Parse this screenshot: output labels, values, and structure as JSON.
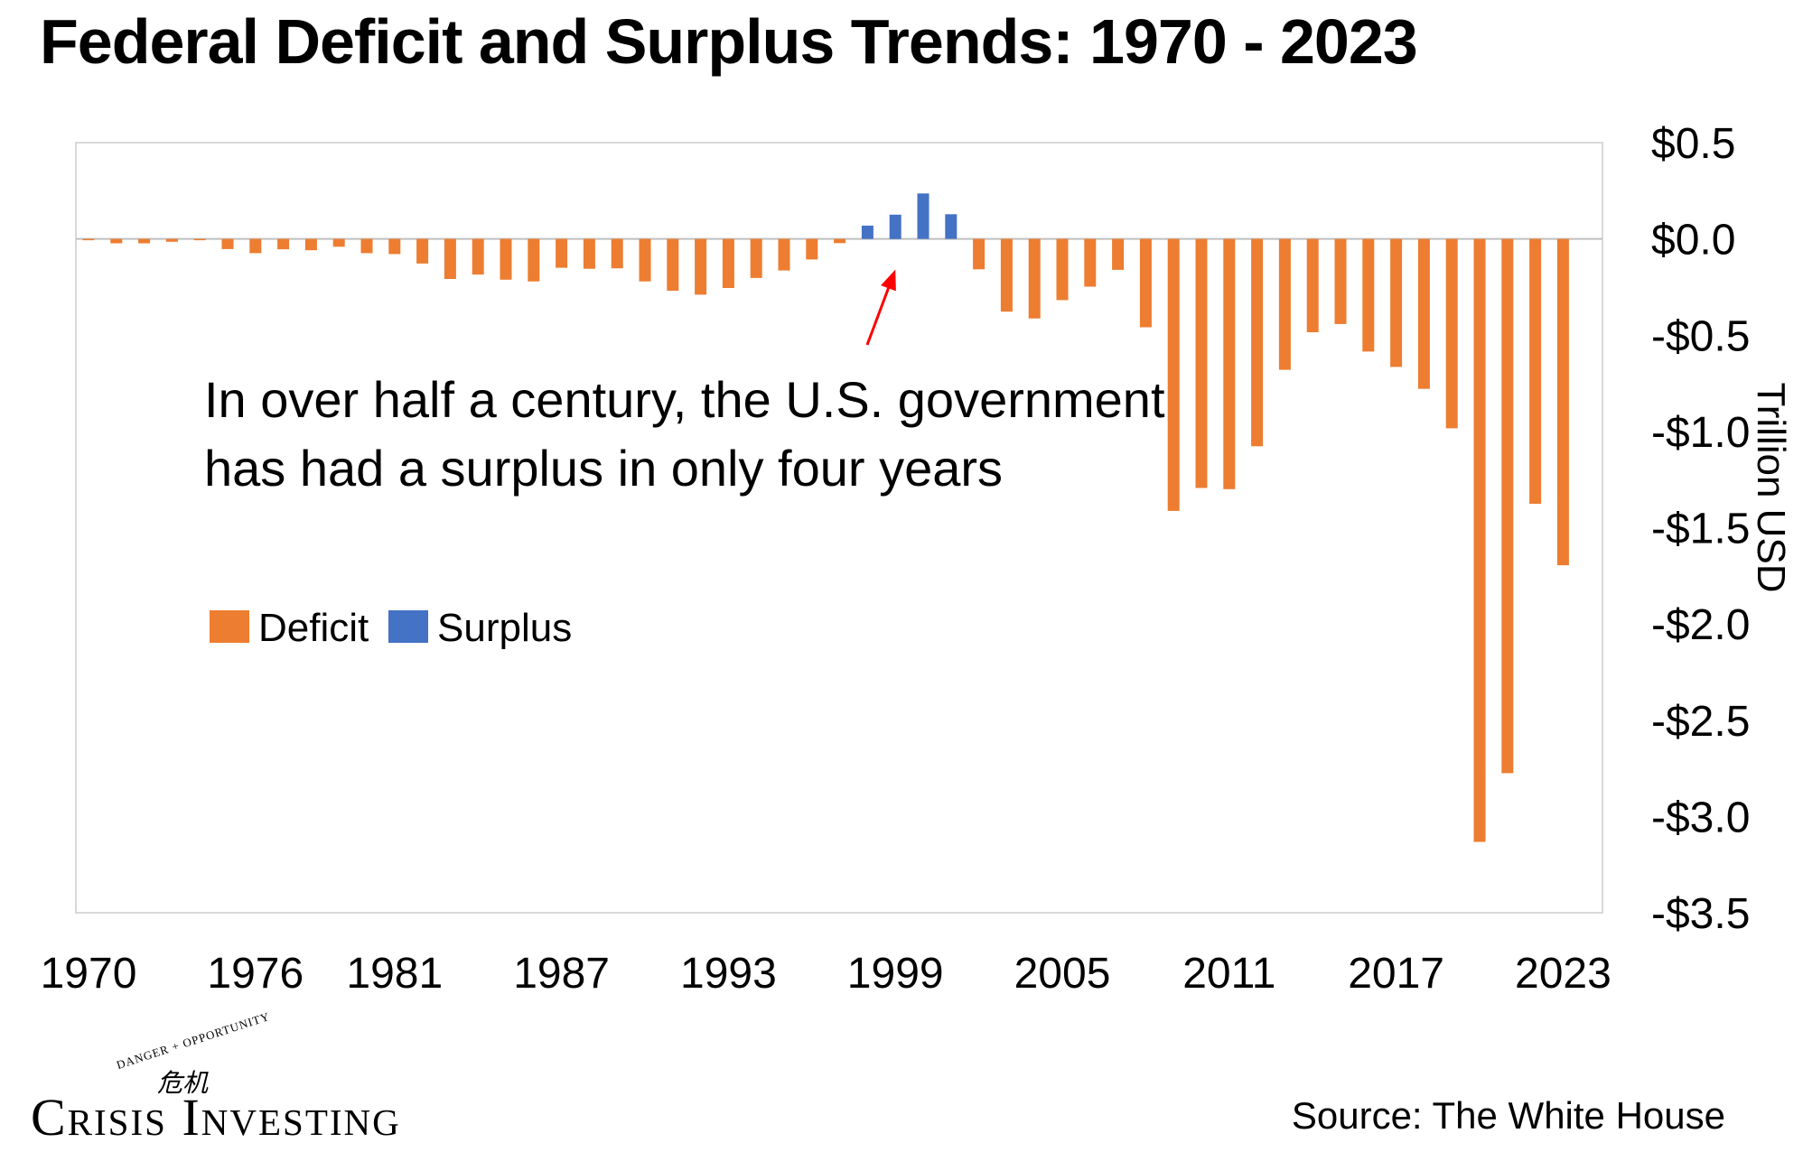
{
  "chart_data": {
    "type": "bar",
    "title": "Federal Deficit and Surplus Trends: 1970 - 2023",
    "ylabel": "Trillion USD",
    "xlabel": "",
    "ylim": [
      -3.5,
      0.5
    ],
    "yticks": [
      0.5,
      0.0,
      -0.5,
      -1.0,
      -1.5,
      -2.0,
      -2.5,
      -3.0,
      -3.5
    ],
    "ytick_labels": [
      "$0.5",
      "$0.0",
      "-$0.5",
      "-$1.0",
      "-$1.5",
      "-$2.0",
      "-$2.5",
      "-$3.0",
      "-$3.5"
    ],
    "xtick_labels": [
      "1970",
      "1976",
      "1981",
      "1987",
      "1993",
      "1999",
      "2005",
      "2011",
      "2017",
      "2023"
    ],
    "y_axis_position": "right",
    "grid": false,
    "legend_placement": "middle-left",
    "series": [
      {
        "name": "Deficit",
        "color": "#ED7D31"
      },
      {
        "name": "Surplus",
        "color": "#4472C4"
      }
    ],
    "categories": [
      1970,
      1971,
      1972,
      1973,
      1974,
      1975,
      1976,
      1977,
      1978,
      1979,
      1980,
      1981,
      1982,
      1983,
      1984,
      1985,
      1986,
      1987,
      1988,
      1989,
      1990,
      1991,
      1992,
      1993,
      1994,
      1995,
      1996,
      1997,
      1998,
      1999,
      2000,
      2001,
      2002,
      2003,
      2004,
      2005,
      2006,
      2007,
      2008,
      2009,
      2010,
      2011,
      2012,
      2013,
      2014,
      2015,
      2016,
      2017,
      2018,
      2019,
      2020,
      2021,
      2022,
      2023
    ],
    "values": [
      -0.003,
      -0.023,
      -0.023,
      -0.015,
      -0.006,
      -0.053,
      -0.074,
      -0.054,
      -0.059,
      -0.041,
      -0.074,
      -0.079,
      -0.128,
      -0.208,
      -0.185,
      -0.212,
      -0.221,
      -0.15,
      -0.155,
      -0.153,
      -0.221,
      -0.269,
      -0.29,
      -0.255,
      -0.203,
      -0.164,
      -0.107,
      -0.022,
      0.069,
      0.126,
      0.236,
      0.128,
      -0.158,
      -0.378,
      -0.413,
      -0.318,
      -0.248,
      -0.161,
      -0.459,
      -1.413,
      -1.294,
      -1.3,
      -1.077,
      -0.68,
      -0.485,
      -0.442,
      -0.585,
      -0.665,
      -0.779,
      -0.984,
      -3.132,
      -2.775,
      -1.376,
      -1.695
    ],
    "annotation": {
      "lines": [
        "In over half a century, the U.S. government",
        "has had a surplus in only four years"
      ],
      "arrow_target_year": 1999,
      "arrow_color": "#FF0000"
    }
  },
  "footer": {
    "logo_top": "DANGER + OPPORTUNITY",
    "logo_glyph": "危机",
    "logo_text": "Crisis Investing",
    "source": "Source: The White House"
  }
}
